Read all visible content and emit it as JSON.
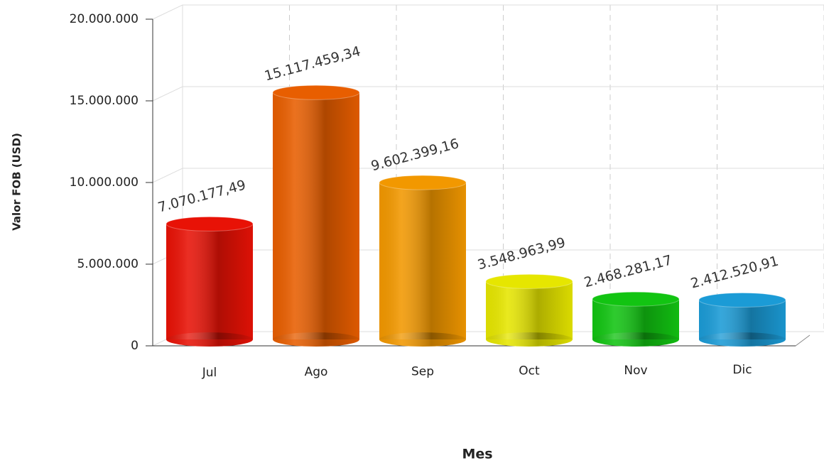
{
  "chart_data": {
    "type": "bar",
    "x_label": "Mes",
    "y_label": "Valor FOB (USD)",
    "categories": [
      "Jul",
      "Ago",
      "Sep",
      "Oct",
      "Nov",
      "Dic"
    ],
    "values": [
      7070177.49,
      15117459.34,
      9602399.16,
      3548963.99,
      2468281.17,
      2412520.91
    ],
    "value_labels": [
      "7.070.177,49",
      "15.117.459,34",
      "9.602.399,16",
      "3.548.963,99",
      "2.468.281,17",
      "2.412.520,91"
    ],
    "colors": [
      "#e81206",
      "#e85e00",
      "#f29800",
      "#e6e600",
      "#12c412",
      "#1b9bd6"
    ],
    "ylim": [
      0,
      20000000
    ],
    "yticks": [
      0,
      {
        "value": 5000000,
        "label": "5.000.000"
      },
      {
        "value": 10000000,
        "label": "10.000.000"
      },
      {
        "value": 15000000,
        "label": "15.000.000"
      },
      {
        "value": 20000000,
        "label": "20.000.000"
      }
    ],
    "grid": true
  }
}
